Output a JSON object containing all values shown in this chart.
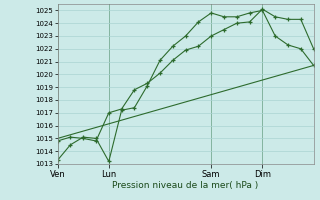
{
  "background_color": "#cceae8",
  "grid_color": "#aad4d2",
  "line_color": "#2d6b2d",
  "xlabel": "Pression niveau de la mer( hPa )",
  "ylim": [
    1013,
    1025.5
  ],
  "yticks": [
    1013,
    1014,
    1015,
    1016,
    1017,
    1018,
    1019,
    1020,
    1021,
    1022,
    1023,
    1024,
    1025
  ],
  "xtick_labels": [
    "Ven",
    "Lun",
    "Sam",
    "Dim"
  ],
  "xtick_positions": [
    0,
    24,
    72,
    96
  ],
  "vline_positions": [
    0,
    24,
    72,
    96
  ],
  "xlim": [
    0,
    120
  ],
  "series1_x": [
    0,
    6,
    12,
    18,
    24,
    30,
    36,
    42,
    48,
    54,
    60,
    66,
    72,
    78,
    84,
    90,
    96,
    102,
    108,
    114,
    120
  ],
  "series1_y": [
    1013.3,
    1014.5,
    1015.1,
    1015.0,
    1013.2,
    1017.2,
    1017.4,
    1019.1,
    1021.1,
    1022.2,
    1023.0,
    1024.1,
    1024.8,
    1024.5,
    1024.5,
    1024.8,
    1025.0,
    1023.0,
    1022.3,
    1022.0,
    1020.7
  ],
  "series2_x": [
    0,
    6,
    12,
    18,
    24,
    30,
    36,
    42,
    48,
    54,
    60,
    66,
    72,
    78,
    84,
    90,
    96,
    102,
    108,
    114,
    120
  ],
  "series2_y": [
    1014.8,
    1015.1,
    1015.0,
    1014.8,
    1017.0,
    1017.3,
    1018.8,
    1019.3,
    1020.1,
    1021.1,
    1021.9,
    1022.2,
    1023.0,
    1023.5,
    1024.0,
    1024.1,
    1025.1,
    1024.5,
    1024.3,
    1024.3,
    1022.0
  ],
  "series3_x": [
    0,
    120
  ],
  "series3_y": [
    1015.0,
    1020.7
  ]
}
